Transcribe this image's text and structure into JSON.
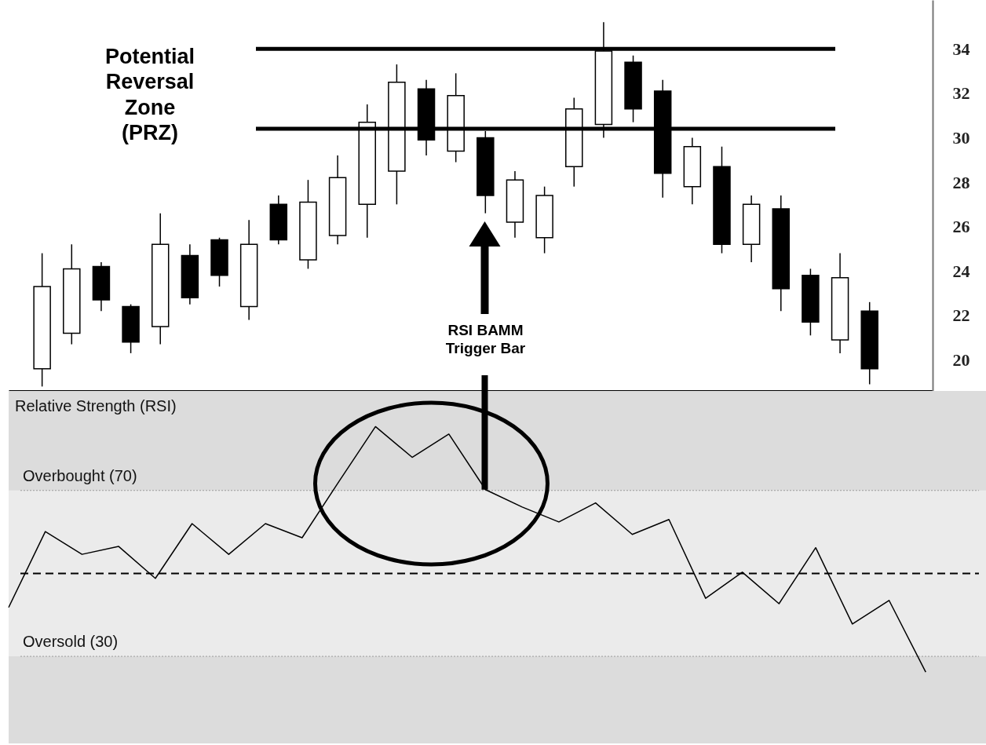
{
  "chart_data": [
    {
      "type": "candlestick",
      "categories": [
        null,
        null,
        null,
        null,
        null,
        null,
        null,
        null,
        null,
        null,
        null,
        null,
        null,
        null,
        null,
        null,
        null,
        null,
        null,
        null,
        null,
        null,
        null,
        null,
        null,
        null,
        null,
        null,
        null
      ],
      "ohlc": [
        [
          19.6,
          24.8,
          18.8,
          23.3
        ],
        [
          21.2,
          25.2,
          20.7,
          24.1
        ],
        [
          24.2,
          24.4,
          22.2,
          22.7
        ],
        [
          22.4,
          22.5,
          20.3,
          20.8
        ],
        [
          21.5,
          26.6,
          20.7,
          25.2
        ],
        [
          24.7,
          25.2,
          22.5,
          22.8
        ],
        [
          25.4,
          25.5,
          23.3,
          23.8
        ],
        [
          22.4,
          26.3,
          21.8,
          25.2
        ],
        [
          27.0,
          27.4,
          25.2,
          25.4
        ],
        [
          24.5,
          28.1,
          24.1,
          27.1
        ],
        [
          25.6,
          29.2,
          25.2,
          28.2
        ],
        [
          27.0,
          31.5,
          25.5,
          30.7
        ],
        [
          28.5,
          33.3,
          27.0,
          32.5
        ],
        [
          32.2,
          32.6,
          29.2,
          29.9
        ],
        [
          29.4,
          32.9,
          28.9,
          31.9
        ],
        [
          30.0,
          30.3,
          26.6,
          27.4
        ],
        [
          26.2,
          28.5,
          25.5,
          28.1
        ],
        [
          25.5,
          27.8,
          24.8,
          27.4
        ],
        [
          28.7,
          31.8,
          27.8,
          31.3
        ],
        [
          30.6,
          35.2,
          30.0,
          33.9
        ],
        [
          33.4,
          33.7,
          30.7,
          31.3
        ],
        [
          32.1,
          32.6,
          27.3,
          28.4
        ],
        [
          27.8,
          30.0,
          27.0,
          29.6
        ],
        [
          28.7,
          29.6,
          24.8,
          25.2
        ],
        [
          25.2,
          27.4,
          24.4,
          27.0
        ],
        [
          26.8,
          27.4,
          22.2,
          23.2
        ],
        [
          23.8,
          24.1,
          21.1,
          21.7
        ],
        [
          20.9,
          24.8,
          20.3,
          23.7
        ],
        [
          22.2,
          22.6,
          18.9,
          19.6
        ]
      ],
      "ylim": [
        18.6,
        36.2
      ],
      "yticks": [
        20,
        22,
        24,
        26,
        28,
        30,
        32,
        34
      ],
      "ref_lines": [
        {
          "axis": "y",
          "value": 34.0,
          "color": "#000000"
        },
        {
          "axis": "y",
          "value": 30.4,
          "color": "#000000"
        }
      ],
      "annotations": [
        "Potential Reversal Zone (PRZ)",
        "RSI BAMM Trigger Bar"
      ]
    },
    {
      "type": "line",
      "title": "Relative Strength (RSI)",
      "categories": [
        null,
        null,
        null,
        null,
        null,
        null,
        null,
        null,
        null,
        null,
        null,
        null,
        null,
        null,
        null,
        null,
        null,
        null,
        null,
        null,
        null,
        null,
        null,
        null,
        null,
        null
      ],
      "series": [
        {
          "color": "#000000",
          "values": [
            41.8,
            60.1,
            54.6,
            56.5,
            48.8,
            62.0,
            54.6,
            62.0,
            58.6,
            72.1,
            85.4,
            78.0,
            83.6,
            70.2,
            66.0,
            62.4,
            67.0,
            59.4,
            63.0,
            44.0,
            50.3,
            42.7,
            56.2,
            37.8,
            43.5,
            26.2
          ]
        }
      ],
      "ylim": [
        9,
        94
      ],
      "tick_labels": false,
      "bands": [
        {
          "axis": "y",
          "from": 30,
          "to": 70,
          "color": "#ebebeb"
        }
      ],
      "ref_lines": [
        {
          "axis": "y",
          "value": 70,
          "label": "Overbought (70)",
          "color": "#9a9a9a",
          "line_style": "dotted"
        },
        {
          "axis": "y",
          "value": 30,
          "label": "Oversold (30)",
          "color": "#9a9a9a",
          "line_style": "dotted"
        },
        {
          "axis": "y",
          "value": 50,
          "color": "#000000",
          "line_style": "dashed"
        }
      ]
    }
  ]
}
